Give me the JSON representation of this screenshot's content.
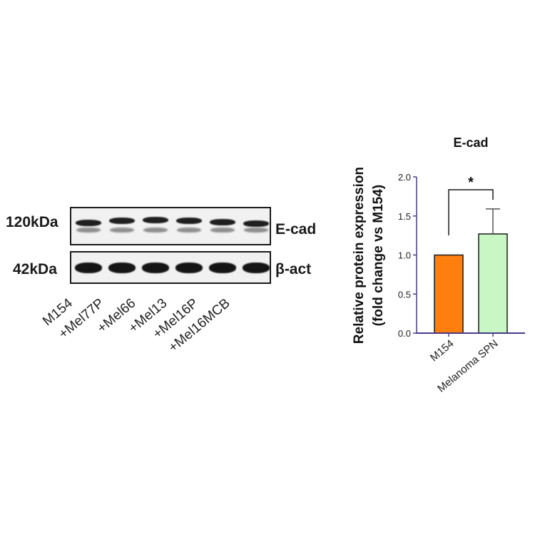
{
  "blot": {
    "rows": [
      {
        "kda": "120kDa",
        "protein": "E-cad"
      },
      {
        "kda": "42kDa",
        "protein": "β-act"
      }
    ],
    "lanes": [
      "M154",
      "+Mel77P",
      "+Mel66",
      "+Mel13",
      "+Mel16P",
      "+Mel16MCB"
    ]
  },
  "chart_data": {
    "type": "bar",
    "title": "E-cad",
    "ylabel_line1": "Relative protein expression",
    "ylabel_line2": "(fold change vs M154)",
    "categories": [
      "M154",
      "Melanoma SPN"
    ],
    "values": [
      1.0,
      1.27
    ],
    "errors": [
      0,
      0.32
    ],
    "colors": [
      "#ff7f0e",
      "#c8f7c5"
    ],
    "ylim": [
      0,
      2.0
    ],
    "yticks": [
      "0.0",
      "0.5",
      "1.0",
      "1.5",
      "2.0"
    ],
    "significance": "*",
    "axis_color": "#4a3a8a"
  }
}
